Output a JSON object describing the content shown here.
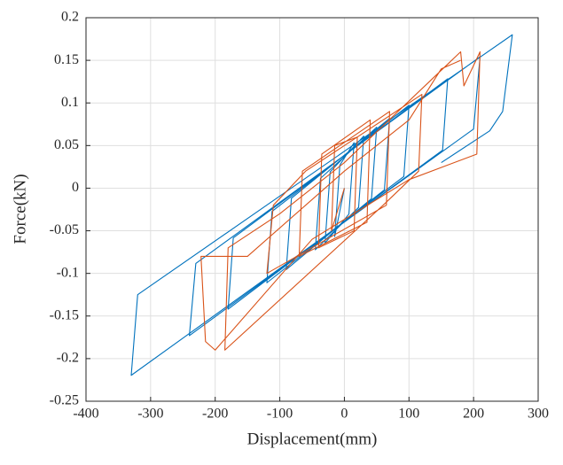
{
  "chart_data": {
    "type": "line",
    "xlabel": "Displacement(mm)",
    "ylabel": "Force(kN)",
    "xlim": [
      -400,
      300
    ],
    "xticks": [
      -400,
      -300,
      -200,
      -100,
      0,
      100,
      200,
      300
    ],
    "ylim": [
      -0.25,
      0.2
    ],
    "yticks": [
      0.2,
      0.15,
      0.1,
      0.05,
      0,
      -0.05,
      -0.1,
      -0.15,
      -0.2,
      -0.25
    ],
    "grid": true,
    "series": [
      {
        "color": "#0072bd",
        "x": [
          0,
          -15,
          -7,
          15,
          7,
          -30,
          -22,
          30,
          22,
          -45,
          -37,
          50,
          42,
          -90,
          -82,
          70,
          62,
          -120,
          -112,
          100,
          92,
          -180,
          -172,
          160,
          152,
          -240,
          -230,
          210,
          200,
          -330,
          -320,
          260,
          245,
          225,
          150
        ],
        "values": [
          0,
          -0.0568,
          0.027,
          0.0534,
          -0.0304,
          -0.0645,
          0.0192,
          0.0611,
          -0.0226,
          -0.0723,
          0.0115,
          0.0715,
          -0.0123,
          -0.0955,
          -0.0118,
          0.0818,
          -0.0019,
          -0.111,
          -0.0273,
          0.0973,
          0.0136,
          -0.142,
          -0.0583,
          0.1283,
          0.0446,
          -0.173,
          -0.0883,
          0.1542,
          0.0694,
          -0.2196,
          -0.125,
          0.18,
          0.09,
          0.0673,
          0.03
        ]
      },
      {
        "color": "#d95319",
        "x": [
          0,
          -20,
          -15,
          20,
          15,
          -40,
          -35,
          40,
          35,
          -70,
          -65,
          70,
          65,
          -120,
          -110,
          -60,
          120,
          115,
          60,
          -185,
          -180,
          -100,
          0,
          180,
          185,
          210,
          205,
          100,
          -50,
          -200,
          -215,
          -222,
          -150,
          0,
          100,
          150,
          180
        ],
        "values": [
          0,
          -0.05,
          0.05,
          0.06,
          -0.05,
          -0.07,
          0.04,
          0.08,
          -0.04,
          -0.08,
          0.02,
          0.09,
          -0.02,
          -0.1,
          -0.02,
          0.02,
          0.11,
          0.02,
          -0.02,
          -0.19,
          -0.07,
          -0.03,
          0.03,
          0.16,
          0.12,
          0.16,
          0.04,
          0.01,
          -0.06,
          -0.19,
          -0.18,
          -0.08,
          -0.08,
          0.02,
          0.08,
          0.14,
          0.15
        ]
      }
    ]
  }
}
